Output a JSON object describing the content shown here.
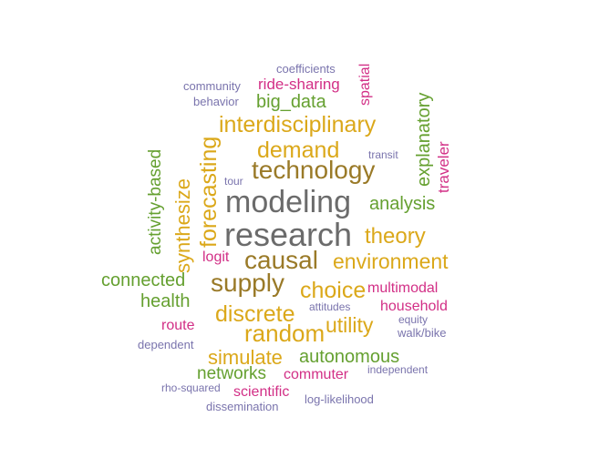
{
  "colors": {
    "gray": "#6b6b6b",
    "olive": "#9a7a28",
    "gold": "#dba81a",
    "green": "#65a030",
    "magenta": "#d22f86",
    "purple": "#7a74ad"
  },
  "words": [
    {
      "text": "research",
      "color": "gray",
      "rotated": false
    },
    {
      "text": "modeling",
      "color": "gray",
      "rotated": false
    },
    {
      "text": "technology",
      "color": "olive",
      "rotated": false
    },
    {
      "text": "causal",
      "color": "olive",
      "rotated": false
    },
    {
      "text": "supply",
      "color": "olive",
      "rotated": false
    },
    {
      "text": "random",
      "color": "gold",
      "rotated": false
    },
    {
      "text": "interdisciplinary",
      "color": "gold",
      "rotated": false
    },
    {
      "text": "demand",
      "color": "gold",
      "rotated": false
    },
    {
      "text": "forecasting",
      "color": "gold",
      "rotated": true
    },
    {
      "text": "discrete",
      "color": "gold",
      "rotated": false
    },
    {
      "text": "choice",
      "color": "gold",
      "rotated": false
    },
    {
      "text": "theory",
      "color": "gold",
      "rotated": false
    },
    {
      "text": "environment",
      "color": "gold",
      "rotated": false
    },
    {
      "text": "utility",
      "color": "gold",
      "rotated": false
    },
    {
      "text": "simulate",
      "color": "gold",
      "rotated": false
    },
    {
      "text": "synthesize",
      "color": "gold",
      "rotated": true
    },
    {
      "text": "analysis",
      "color": "green",
      "rotated": false
    },
    {
      "text": "explanatory",
      "color": "green",
      "rotated": true
    },
    {
      "text": "activity-based",
      "color": "green",
      "rotated": true
    },
    {
      "text": "connected",
      "color": "green",
      "rotated": false
    },
    {
      "text": "health",
      "color": "green",
      "rotated": false
    },
    {
      "text": "autonomous",
      "color": "green",
      "rotated": false
    },
    {
      "text": "networks",
      "color": "green",
      "rotated": false
    },
    {
      "text": "big_data",
      "color": "green",
      "rotated": false
    },
    {
      "text": "ride-sharing",
      "color": "magenta",
      "rotated": false
    },
    {
      "text": "spatial",
      "color": "magenta",
      "rotated": true
    },
    {
      "text": "traveler",
      "color": "magenta",
      "rotated": true
    },
    {
      "text": "logit",
      "color": "magenta",
      "rotated": false
    },
    {
      "text": "multimodal",
      "color": "magenta",
      "rotated": false
    },
    {
      "text": "household",
      "color": "magenta",
      "rotated": false
    },
    {
      "text": "route",
      "color": "magenta",
      "rotated": false
    },
    {
      "text": "commuter",
      "color": "magenta",
      "rotated": false
    },
    {
      "text": "scientific",
      "color": "magenta",
      "rotated": false
    },
    {
      "text": "coefficients",
      "color": "purple",
      "rotated": false
    },
    {
      "text": "community",
      "color": "purple",
      "rotated": false
    },
    {
      "text": "behavior",
      "color": "purple",
      "rotated": false
    },
    {
      "text": "transit",
      "color": "purple",
      "rotated": false
    },
    {
      "text": "tour",
      "color": "purple",
      "rotated": false
    },
    {
      "text": "attitudes",
      "color": "purple",
      "rotated": false
    },
    {
      "text": "equity",
      "color": "purple",
      "rotated": false
    },
    {
      "text": "walk/bike",
      "color": "purple",
      "rotated": false
    },
    {
      "text": "dependent",
      "color": "purple",
      "rotated": false
    },
    {
      "text": "independent",
      "color": "purple",
      "rotated": false
    },
    {
      "text": "rho-squared",
      "color": "purple",
      "rotated": false
    },
    {
      "text": "log-likelihood",
      "color": "purple",
      "rotated": false
    },
    {
      "text": "dissemination",
      "color": "purple",
      "rotated": false
    }
  ]
}
